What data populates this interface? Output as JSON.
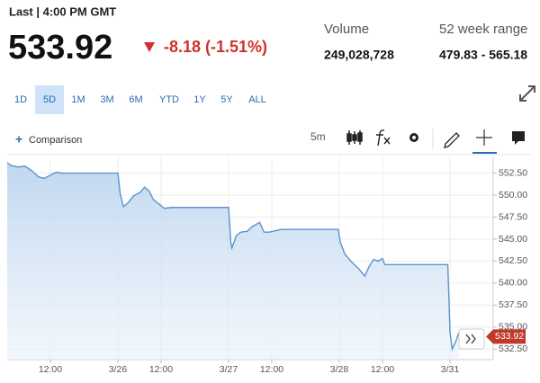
{
  "header": {
    "last": "Last | 4:00 PM GMT",
    "change": "-8.18 (-1.51%)",
    "volume_label": "Volume",
    "volume": "249,028,728",
    "range_label": "52 week range",
    "range": "479.83 - 565.18"
  },
  "tabs": [
    "1D",
    "5D",
    "1M",
    "3M",
    "6M",
    "YTD",
    "1Y",
    "5Y",
    "ALL"
  ],
  "active_tab": 1,
  "toolbar": {
    "comparison": "Comparison",
    "interval": "5m"
  },
  "chart_data": {
    "type": "line",
    "last_value": 533.92,
    "x": [
      0,
      0.03,
      0.1,
      0.16,
      0.22,
      0.28,
      0.33,
      0.38,
      0.44,
      0.5,
      1.0,
      1.02,
      1.05,
      1.09,
      1.14,
      1.2,
      1.24,
      1.28,
      1.32,
      1.38,
      1.42,
      1.48,
      1.52,
      2.0,
      2.02,
      2.03,
      2.07,
      2.11,
      2.17,
      2.21,
      2.28,
      2.32,
      2.37,
      2.44,
      2.47,
      2.99,
      3.01,
      3.05,
      3.11,
      3.17,
      3.23,
      3.27,
      3.31,
      3.35,
      3.39,
      3.41,
      3.51,
      3.98,
      4.0,
      4.02,
      4.05,
      4.08
    ],
    "series": [
      {
        "color": "#5b93cc",
        "values": [
          553.7,
          553.4,
          553.2,
          553.3,
          552.8,
          552.1,
          551.9,
          552.2,
          552.6,
          552.5,
          552.5,
          550.2,
          548.7,
          549.1,
          549.9,
          550.3,
          550.9,
          550.5,
          549.5,
          548.9,
          548.5,
          548.6,
          548.6,
          548.6,
          544.6,
          544.0,
          545.4,
          545.8,
          545.9,
          546.4,
          546.9,
          545.8,
          545.8,
          546.0,
          546.1,
          546.1,
          544.6,
          543.3,
          542.4,
          541.7,
          540.8,
          541.9,
          542.7,
          542.5,
          542.8,
          542.1,
          542.1,
          542.1,
          534.4,
          532.5,
          533.3,
          534.4
        ]
      }
    ],
    "xlim": [
      0,
      4.39
    ],
    "xticks": [
      {
        "value": 0.39,
        "label": "12:00"
      },
      {
        "value": 1,
        "label": "3/26"
      },
      {
        "value": 1.39,
        "label": "12:00"
      },
      {
        "value": 2,
        "label": "3/27"
      },
      {
        "value": 2.39,
        "label": "12:00"
      },
      {
        "value": 3,
        "label": "3/28"
      },
      {
        "value": 3.39,
        "label": "12:00"
      },
      {
        "value": 4,
        "label": "3/31"
      }
    ],
    "ylim": [
      531.3,
      554.3
    ],
    "yticks": [
      {
        "value": 532.5,
        "label": "532.50"
      },
      {
        "value": 535,
        "label": "535.00"
      },
      {
        "value": 537.5,
        "label": "537.50"
      },
      {
        "value": 540,
        "label": "540.00"
      },
      {
        "value": 542.5,
        "label": "542.50"
      },
      {
        "value": 545,
        "label": "545.00"
      },
      {
        "value": 547.5,
        "label": "547.50"
      },
      {
        "value": 550,
        "label": "550.00"
      },
      {
        "value": 552.5,
        "label": "552.50"
      }
    ],
    "grid": true
  }
}
